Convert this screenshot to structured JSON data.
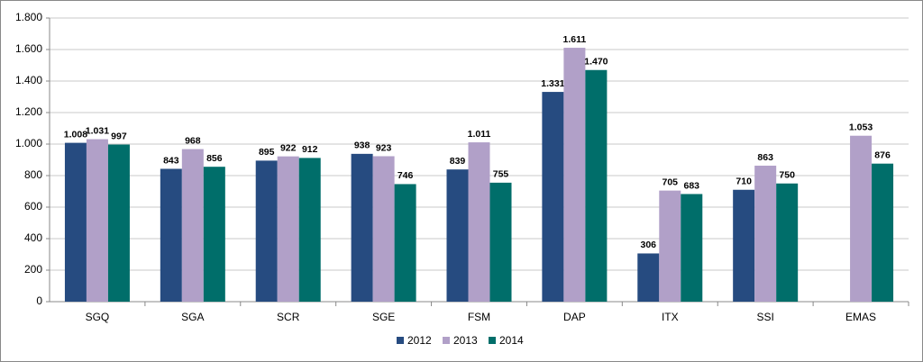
{
  "chart_data": {
    "type": "bar",
    "categories": [
      "SGQ",
      "SGA",
      "SCR",
      "SGE",
      "FSM",
      "DAP",
      "ITX",
      "SSI",
      "EMAS"
    ],
    "series": [
      {
        "name": "2012",
        "color": "#264b80",
        "values": [
          1008,
          843,
          895,
          938,
          839,
          1331,
          306,
          710,
          null
        ],
        "value_labels": [
          "1.008",
          "843",
          "895",
          "938",
          "839",
          "1.331",
          "306",
          "710",
          null
        ]
      },
      {
        "name": "2013",
        "color": "#b1a0c8",
        "values": [
          1031,
          968,
          922,
          923,
          1011,
          1611,
          705,
          863,
          1053
        ],
        "value_labels": [
          "1.031",
          "968",
          "922",
          "923",
          "1.011",
          "1.611",
          "705",
          "863",
          "1.053"
        ]
      },
      {
        "name": "2014",
        "color": "#006e6a",
        "values": [
          997,
          856,
          912,
          746,
          755,
          1470,
          683,
          750,
          876
        ],
        "value_labels": [
          "997",
          "856",
          "912",
          "746",
          "755",
          "1.470",
          "683",
          "750",
          "876"
        ]
      }
    ],
    "ylim": [
      0,
      1800
    ],
    "yticks": [
      0,
      200,
      400,
      600,
      800,
      {
        "value": 1000,
        "label": "1.000"
      },
      {
        "value": 1200,
        "label": "1.200"
      },
      {
        "value": 1400,
        "label": "1.400"
      },
      {
        "value": 1600,
        "label": "1.600"
      },
      {
        "value": 1800,
        "label": "1.800"
      }
    ],
    "grid": true,
    "legend": "bottom"
  }
}
